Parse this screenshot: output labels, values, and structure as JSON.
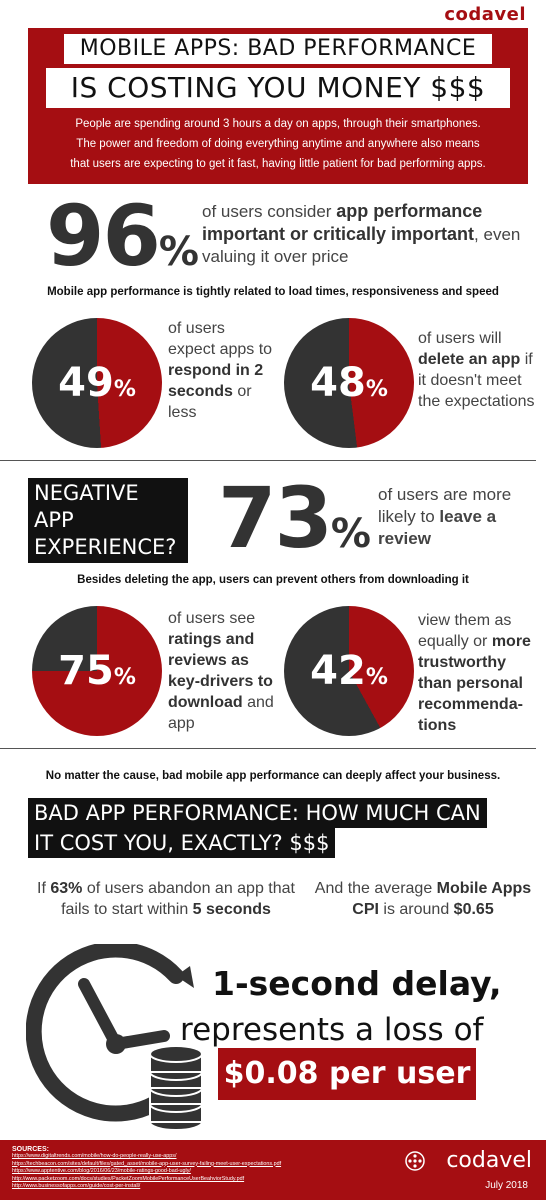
{
  "brand": {
    "name": "codavel"
  },
  "colors": {
    "accent": "#a50e12",
    "dark": "#333333",
    "black": "#111111"
  },
  "header": {
    "title_line1": "MOBILE APPS: BAD PERFORMANCE",
    "title_line2": "IS COSTING YOU MONEY $$$",
    "intro": "People are spending around 3 hours a day on apps, through their smartphones. The power and freedom of doing everything anytime and anywhere also means that users are expecting to get it fast, having little patient for bad performing apps."
  },
  "stat96": {
    "number": "96",
    "unit": "%",
    "text_pre": "of users consider ",
    "text_bold": "app performance important or critically important",
    "text_post": ", even valuing it over price"
  },
  "subhead1": "Mobile app performance is tightly related to load times, responsiveness and speed",
  "pies_row1": [
    {
      "number": "49",
      "unit": "%",
      "value": 49,
      "text_pre": "of users expect apps to ",
      "text_bold": "respond in 2 seconds",
      "text_post": " or less"
    },
    {
      "number": "48",
      "unit": "%",
      "value": 48,
      "text_pre": "of users will ",
      "text_bold": "delete an app",
      "text_post": " if it doesn't meet the expectations"
    }
  ],
  "negative_box": [
    "NEGATIVE",
    "APP",
    "EXPERIENCE?"
  ],
  "stat73": {
    "number": "73",
    "unit": "%",
    "text_pre": "of users are more likely to ",
    "text_bold": "leave a review",
    "text_post": ""
  },
  "subhead2": "Besides deleting the app, users can prevent others from downloading it",
  "pies_row2": [
    {
      "number": "75",
      "unit": "%",
      "value": 75,
      "text_pre": "of users see ",
      "text_bold": "ratings and reviews as key-drivers to download",
      "text_post": " and app"
    },
    {
      "number": "42",
      "unit": "%",
      "value": 42,
      "text_pre": "view them as equally or ",
      "text_bold": "more trustworthy than personal recommenda-tions",
      "text_post": ""
    }
  ],
  "subhead3": "No matter the cause, bad mobile app performance can deeply affect your business.",
  "cost_box": [
    "BAD APP PERFORMANCE: HOW MUCH CAN",
    "IT COST YOU, EXACTLY? $$$"
  ],
  "abandon": {
    "pre": "If ",
    "bold1": "63%",
    "mid": " of users abandon an app that fails to start within ",
    "bold2": "5 seconds",
    "post": ""
  },
  "cpi": {
    "pre": "And the average ",
    "bold1": "Mobile Apps CPI",
    "mid": " is around ",
    "bold2": "$0.65",
    "post": ""
  },
  "delay": {
    "line1_bold": "1-second delay",
    "line1_rest": ",",
    "line2": "represents a loss of",
    "line3": "$0.08 per user"
  },
  "footer": {
    "sources_title": "SOURCES:",
    "sources": [
      "https://www.digitaltrends.com/mobile/how-do-people-really-use-apps/",
      "https://techbeacon.com/sites/default/files/gated_asset/mobile-app-user-survey-failing-meet-user-expectations.pdf",
      "https://www.apptentive.com/blog/2016/06/23/mobile-ratings-good-bad-ugly/",
      "http://www.packetzoom.com/docs/studies/PacketZoomMobilePerformanceUserBeahviorStudy.pdf",
      "http://www.businessofapps.com/guide/cost-per-install/"
    ],
    "logo": "codavel",
    "date": "July 2018"
  }
}
